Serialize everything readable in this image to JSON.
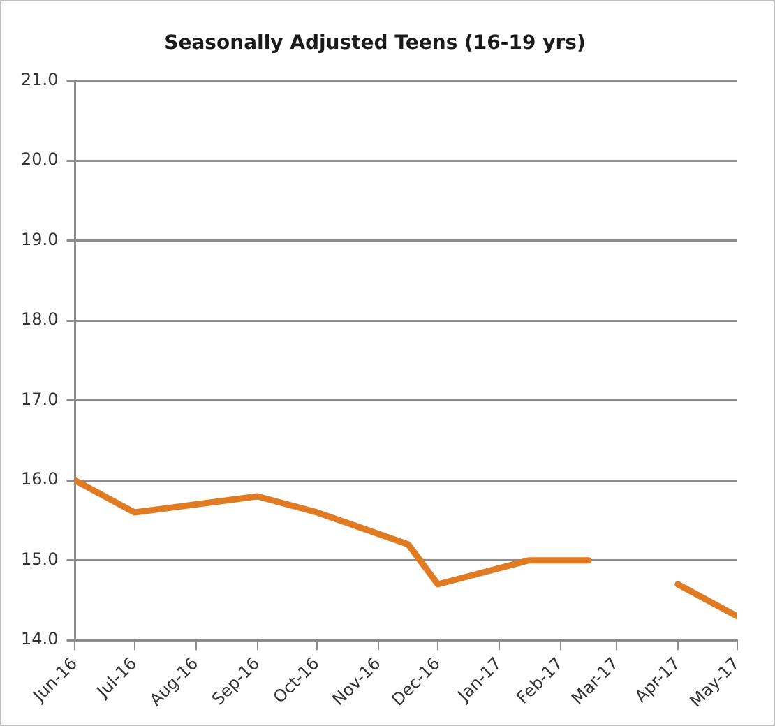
{
  "chart_data": {
    "type": "line",
    "title": "Seasonally Adjusted Teens (16-19 yrs)",
    "x": [
      "2016-06-01",
      "2016-07-01",
      "2016-08-01",
      "2016-09-01",
      "2016-10-01",
      "2016-11-16",
      "2016-12-01",
      "2017-01-16",
      "2017-02-15",
      "2017-03-16",
      "2017-04-01",
      "2017-05-01"
    ],
    "series": [
      {
        "color": "#e07b24",
        "values": [
          16.0,
          15.6,
          15.7,
          15.8,
          15.6,
          15.2,
          14.7,
          15.0,
          15.0,
          null,
          14.7,
          14.3
        ]
      }
    ],
    "xlim": [
      "2016-06-01",
      "2017-05-01"
    ],
    "xticks": [
      {
        "value": "2016-06-01",
        "label": "Jun-16"
      },
      {
        "value": "2016-07-01",
        "label": "Jul-16"
      },
      {
        "value": "2016-08-01",
        "label": "Aug-16"
      },
      {
        "value": "2016-09-01",
        "label": "Sep-16"
      },
      {
        "value": "2016-10-01",
        "label": "Oct-16"
      },
      {
        "value": "2016-11-01",
        "label": "Nov-16"
      },
      {
        "value": "2016-12-01",
        "label": "Dec-16"
      },
      {
        "value": "2017-01-01",
        "label": "Jan-17"
      },
      {
        "value": "2017-02-01",
        "label": "Feb-17"
      },
      {
        "value": "2017-03-01",
        "label": "Mar-17"
      },
      {
        "value": "2017-04-01",
        "label": "Apr-17"
      },
      {
        "value": "2017-05-01",
        "label": "May-17"
      }
    ],
    "ylim": [
      14,
      21
    ],
    "yticks": [
      {
        "value": 14,
        "label": "14.0"
      },
      {
        "value": 15,
        "label": "15.0"
      },
      {
        "value": 16,
        "label": "16.0"
      },
      {
        "value": 17,
        "label": "17.0"
      },
      {
        "value": 18,
        "label": "18.0"
      },
      {
        "value": 19,
        "label": "19.0"
      },
      {
        "value": 20,
        "label": "20.0"
      },
      {
        "value": 21,
        "label": "21.0"
      }
    ],
    "grid": "y",
    "legend": false,
    "marker": "none",
    "line_style": "solid"
  }
}
